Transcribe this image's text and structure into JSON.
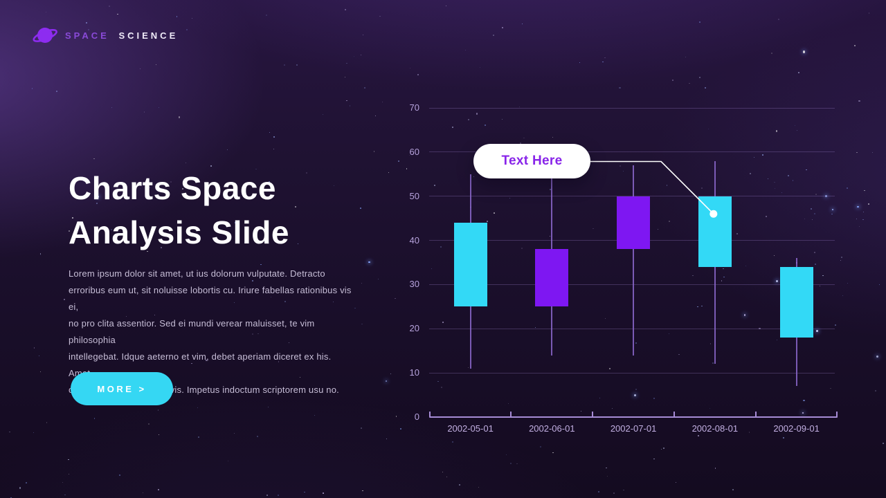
{
  "logo": {
    "icon": "planet-icon",
    "brand_primary": "SPACE",
    "brand_secondary": "SCIENCE"
  },
  "hero": {
    "title_lines": [
      "Charts Space",
      "Analysis Slide"
    ],
    "body_lines": [
      "Lorem ipsum dolor sit amet, ut ius dolorum vulputate. Detracto",
      "erroribus eum ut, sit noluisse lobortis cu. Iriure fabellas rationibus vis ei,",
      "no pro clita assentior. Sed ei mundi verear maluisset, te vim philosophia",
      "intellegebat. Idque aeterno et vim, debet aperiam diceret ex his. Amet",
      "commune scriptorem ex vis. Impetus indoctum scriptorem usu no."
    ],
    "cta_label": "MORE >"
  },
  "chart_data": {
    "type": "candlestick",
    "categories": [
      "2002-05-01",
      "2002-06-01",
      "2002-07-01",
      "2002-08-01",
      "2002-09-01"
    ],
    "series": [
      {
        "date": "2002-05-01",
        "open": 44,
        "close": 25,
        "high": 55,
        "low": 11,
        "color": "cyan"
      },
      {
        "date": "2002-06-01",
        "open": 25,
        "close": 38,
        "high": 57,
        "low": 14,
        "color": "purple"
      },
      {
        "date": "2002-07-01",
        "open": 38,
        "close": 50,
        "high": 57,
        "low": 14,
        "color": "purple"
      },
      {
        "date": "2002-08-01",
        "open": 50,
        "close": 34,
        "high": 58,
        "low": 12,
        "color": "cyan"
      },
      {
        "date": "2002-09-01",
        "open": 34,
        "close": 18,
        "high": 36,
        "low": 7,
        "color": "cyan"
      }
    ],
    "y_ticks": [
      0,
      10,
      20,
      30,
      40,
      50,
      60,
      70
    ],
    "ylim": [
      0,
      70
    ],
    "grid": true,
    "legend": false,
    "annotation": {
      "label": "Text Here",
      "target_date": "2002-08-01",
      "target_value": 46
    }
  },
  "colors": {
    "candle_cyan": "#33d9f6",
    "candle_purple": "#7e17f2",
    "cta_background": "#35d7f3",
    "bubble_text": "#8824e9",
    "axis_label": "#b7a3dd",
    "background": "#1c102e"
  }
}
